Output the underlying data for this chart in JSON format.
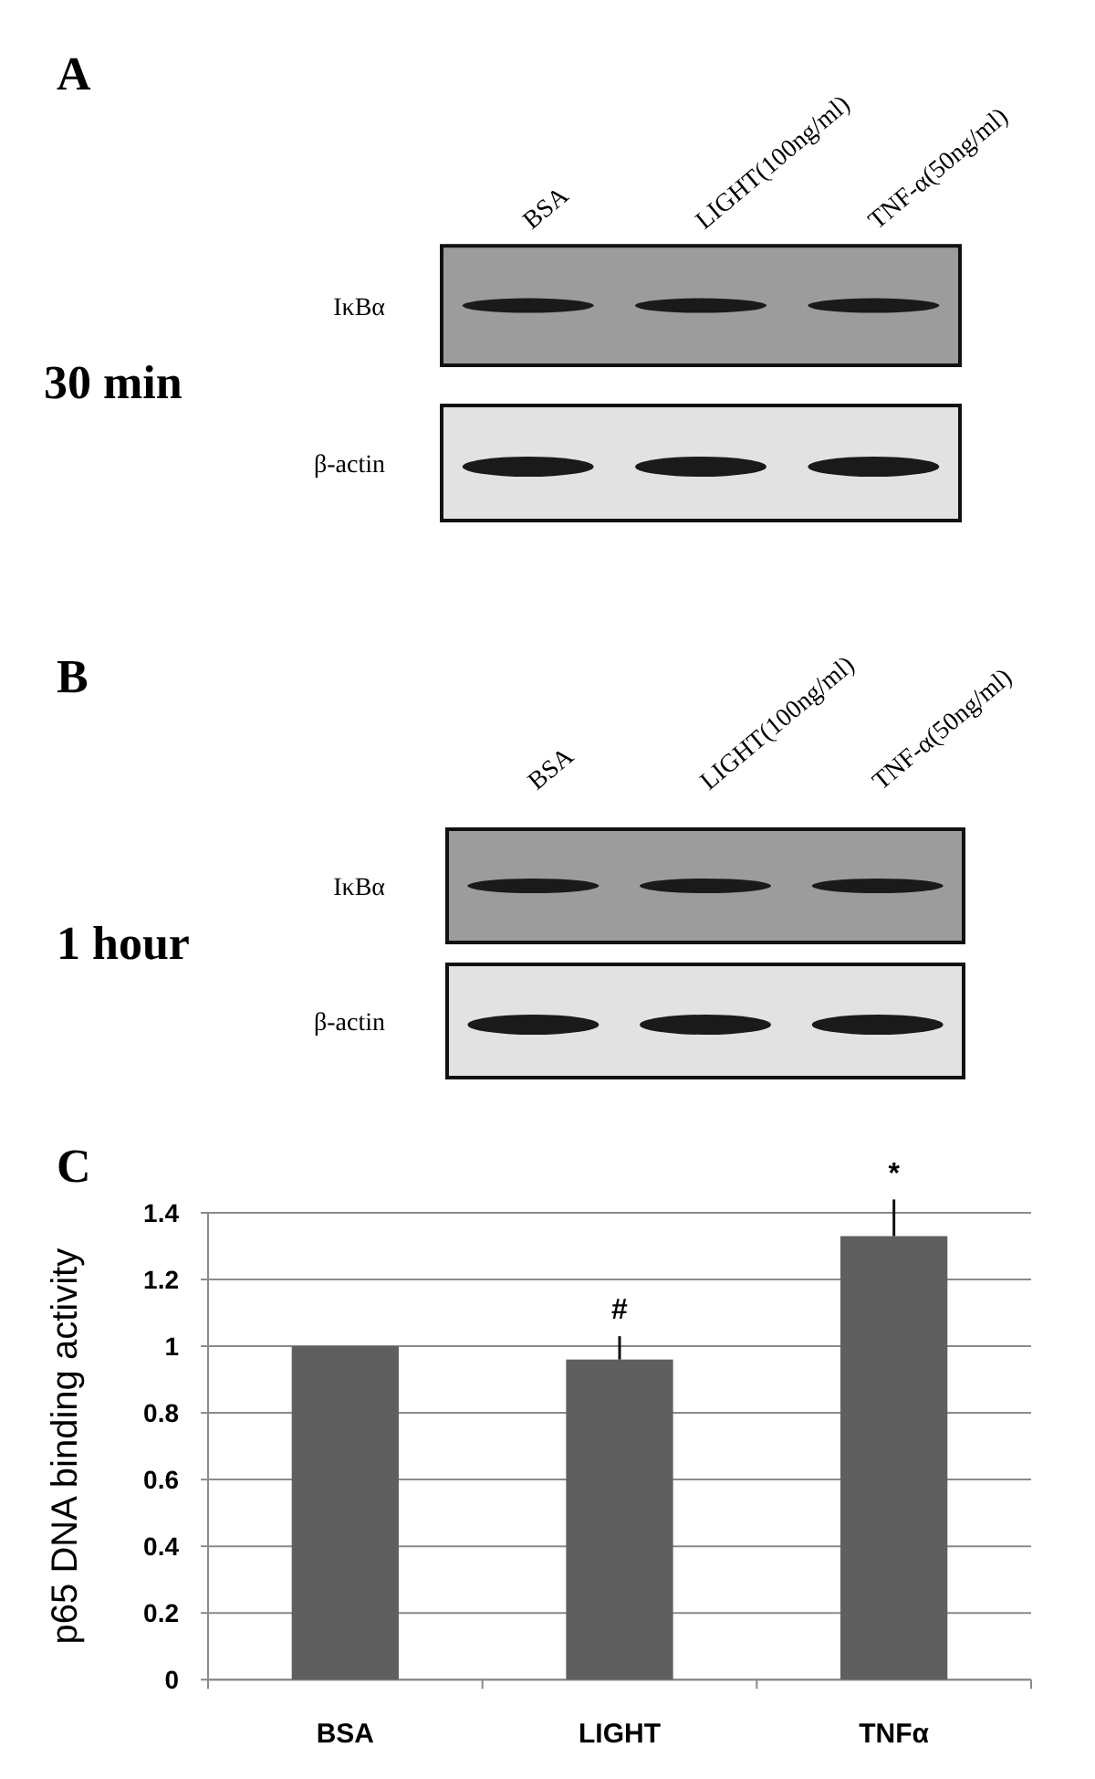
{
  "chart_data": [
    {
      "type": "other",
      "title": "A",
      "categories": [
        "BSA",
        "LIGHT(100ng/ml)",
        "TNF-α(50ng/ml)"
      ],
      "y_categories": [
        "IκBα",
        "β-actin"
      ],
      "annotations": [
        "30 min"
      ]
    },
    {
      "type": "other",
      "title": "B",
      "categories": [
        "BSA",
        "LIGHT(100ng/ml)",
        "TNF-α(50ng/ml)"
      ],
      "y_categories": [
        "IκBα",
        "β-actin"
      ],
      "annotations": [
        "1 hour"
      ]
    },
    {
      "type": "bar",
      "title": "C",
      "ylabel": "p65 DNA binding activity",
      "categories": [
        "BSA",
        "LIGHT",
        "TNFα"
      ],
      "values": [
        1,
        0.96,
        1.33
      ],
      "errors": [
        null,
        [
          0.96,
          1.03
        ],
        [
          1.33,
          1.44
        ]
      ],
      "color": "#5f5f5f",
      "ylim": [
        0,
        1.4
      ],
      "yticks": [
        0,
        0.2,
        0.4,
        0.6,
        0.8,
        1,
        1.2,
        1.4
      ],
      "grid": "y",
      "annotations": [
        "#",
        "*"
      ]
    }
  ]
}
